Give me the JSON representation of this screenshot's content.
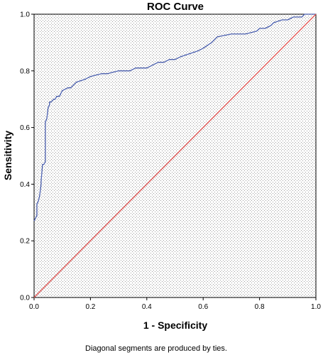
{
  "chart_data": {
    "type": "line",
    "title": "ROC Curve",
    "xlabel": "1 - Specificity",
    "ylabel": "Sensitivity",
    "xlim": [
      0.0,
      1.0
    ],
    "ylim": [
      0.0,
      1.0
    ],
    "x_ticks": [
      "0.0",
      "0.2",
      "0.4",
      "0.6",
      "0.8",
      "1.0"
    ],
    "y_ticks": [
      "0.0",
      "0.2",
      "0.4",
      "0.6",
      "0.8",
      "1.0"
    ],
    "grid": false,
    "footnote": "Diagonal segments are produced by ties.",
    "colors": {
      "roc": "#4a5fae",
      "reference": "#e0504e",
      "plot_bg": "#ffffff",
      "dots": "#9a9a9a"
    },
    "series": [
      {
        "role": "roc",
        "x": [
          0.0,
          0.005,
          0.01,
          0.01,
          0.015,
          0.02,
          0.025,
          0.025,
          0.03,
          0.035,
          0.04,
          0.04,
          0.045,
          0.05,
          0.055,
          0.055,
          0.06,
          0.07,
          0.075,
          0.08,
          0.09,
          0.1,
          0.12,
          0.13,
          0.15,
          0.18,
          0.2,
          0.24,
          0.26,
          0.3,
          0.34,
          0.36,
          0.4,
          0.42,
          0.44,
          0.46,
          0.48,
          0.5,
          0.52,
          0.55,
          0.58,
          0.6,
          0.63,
          0.65,
          0.7,
          0.75,
          0.79,
          0.8,
          0.82,
          0.84,
          0.85,
          0.88,
          0.9,
          0.92,
          0.95,
          0.96,
          0.98,
          1.0
        ],
        "y": [
          0.27,
          0.28,
          0.29,
          0.33,
          0.34,
          0.36,
          0.4,
          0.41,
          0.47,
          0.47,
          0.48,
          0.62,
          0.63,
          0.67,
          0.68,
          0.69,
          0.69,
          0.7,
          0.7,
          0.71,
          0.71,
          0.73,
          0.74,
          0.74,
          0.76,
          0.77,
          0.78,
          0.79,
          0.79,
          0.8,
          0.8,
          0.81,
          0.81,
          0.82,
          0.83,
          0.83,
          0.84,
          0.84,
          0.85,
          0.86,
          0.87,
          0.88,
          0.9,
          0.92,
          0.93,
          0.93,
          0.94,
          0.95,
          0.95,
          0.96,
          0.97,
          0.98,
          0.98,
          0.99,
          0.99,
          1.0,
          1.0,
          1.0
        ]
      },
      {
        "role": "reference",
        "x": [
          0.0,
          1.0
        ],
        "y": [
          0.0,
          1.0
        ]
      }
    ]
  }
}
